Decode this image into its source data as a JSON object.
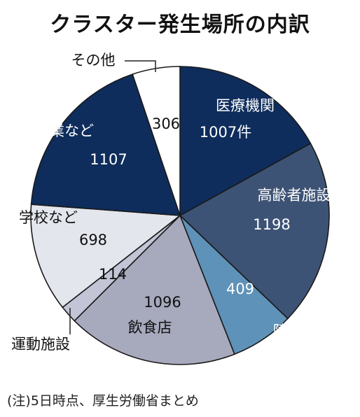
{
  "chart_data": {
    "type": "pie",
    "title": "クラスター発生場所の内訳",
    "categories": [
      "医療機関",
      "高齢者施設",
      "障害者・児童福祉施設",
      "飲食店",
      "運動施設",
      "学校など",
      "企業など",
      "その他"
    ],
    "values": [
      1007,
      1198,
      409,
      1096,
      114,
      698,
      1107,
      306
    ],
    "value_labels": [
      "1007件",
      "1198",
      "409",
      "1096",
      "114",
      "698",
      "1107",
      "306"
    ],
    "colors": {
      "医療機関": "#0e2d5c",
      "高齢者施設": "#3d5375",
      "障害者・児童福祉施設": "#5e92b8",
      "飲食店": "#a7a9bd",
      "運動施設": "#c3c5d6",
      "学校など": "#e4e6ee",
      "企業など": "#0e2d5c",
      "その他": "#ffffff"
    },
    "note": "(注)5日時点、厚生労働省まとめ"
  }
}
